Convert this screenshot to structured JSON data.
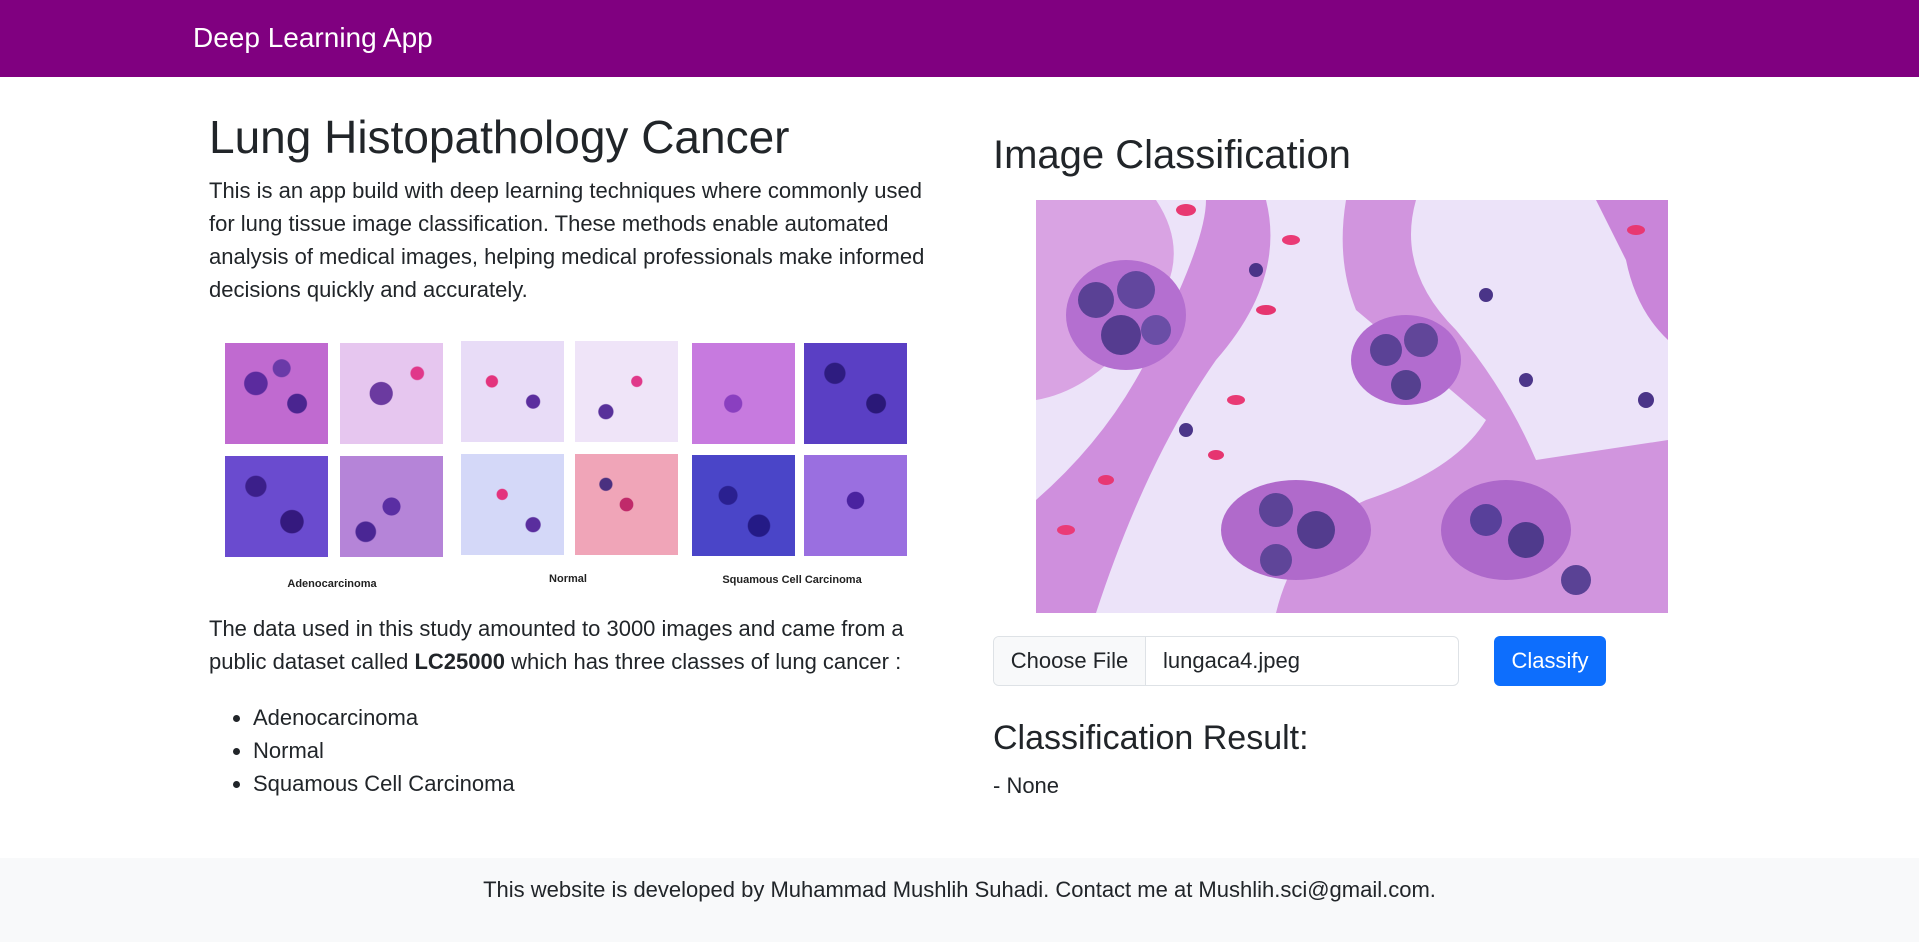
{
  "navbar": {
    "brand": "Deep Learning App"
  },
  "intro": {
    "title": "Lung Histopathology Cancer",
    "description": "This is an app build with deep learning techniques where commonly used for lung tissue image classification. These methods enable automated analysis of medical images, helping medical professionals make informed decisions quickly and accurately.",
    "figure_labels": [
      "Adenocarcinoma",
      "Normal",
      "Squamous Cell Carcinoma"
    ],
    "data_text_before": "The data used in this study amounted to 3000 images and came from a public dataset called ",
    "dataset_name": "LC25000",
    "data_text_after": " which has three classes of lung cancer :",
    "classes": [
      "Adenocarcinoma",
      "Normal",
      "Squamous Cell Carcinoma"
    ]
  },
  "classification": {
    "title": "Image Classification",
    "choose_file_label": "Choose File",
    "file_name": "lungaca4.jpeg",
    "classify_label": "Classify",
    "result_title": "Classification Result:",
    "result_value": "- None"
  },
  "footer": {
    "text": "This website is developed by Muhammad Mushlih Suhadi. Contact me at Mushlih.sci@gmail.com."
  },
  "colors": {
    "navbar": "#800080",
    "primary_button": "#0d6efd",
    "footer_bg": "#f8f9fa"
  }
}
